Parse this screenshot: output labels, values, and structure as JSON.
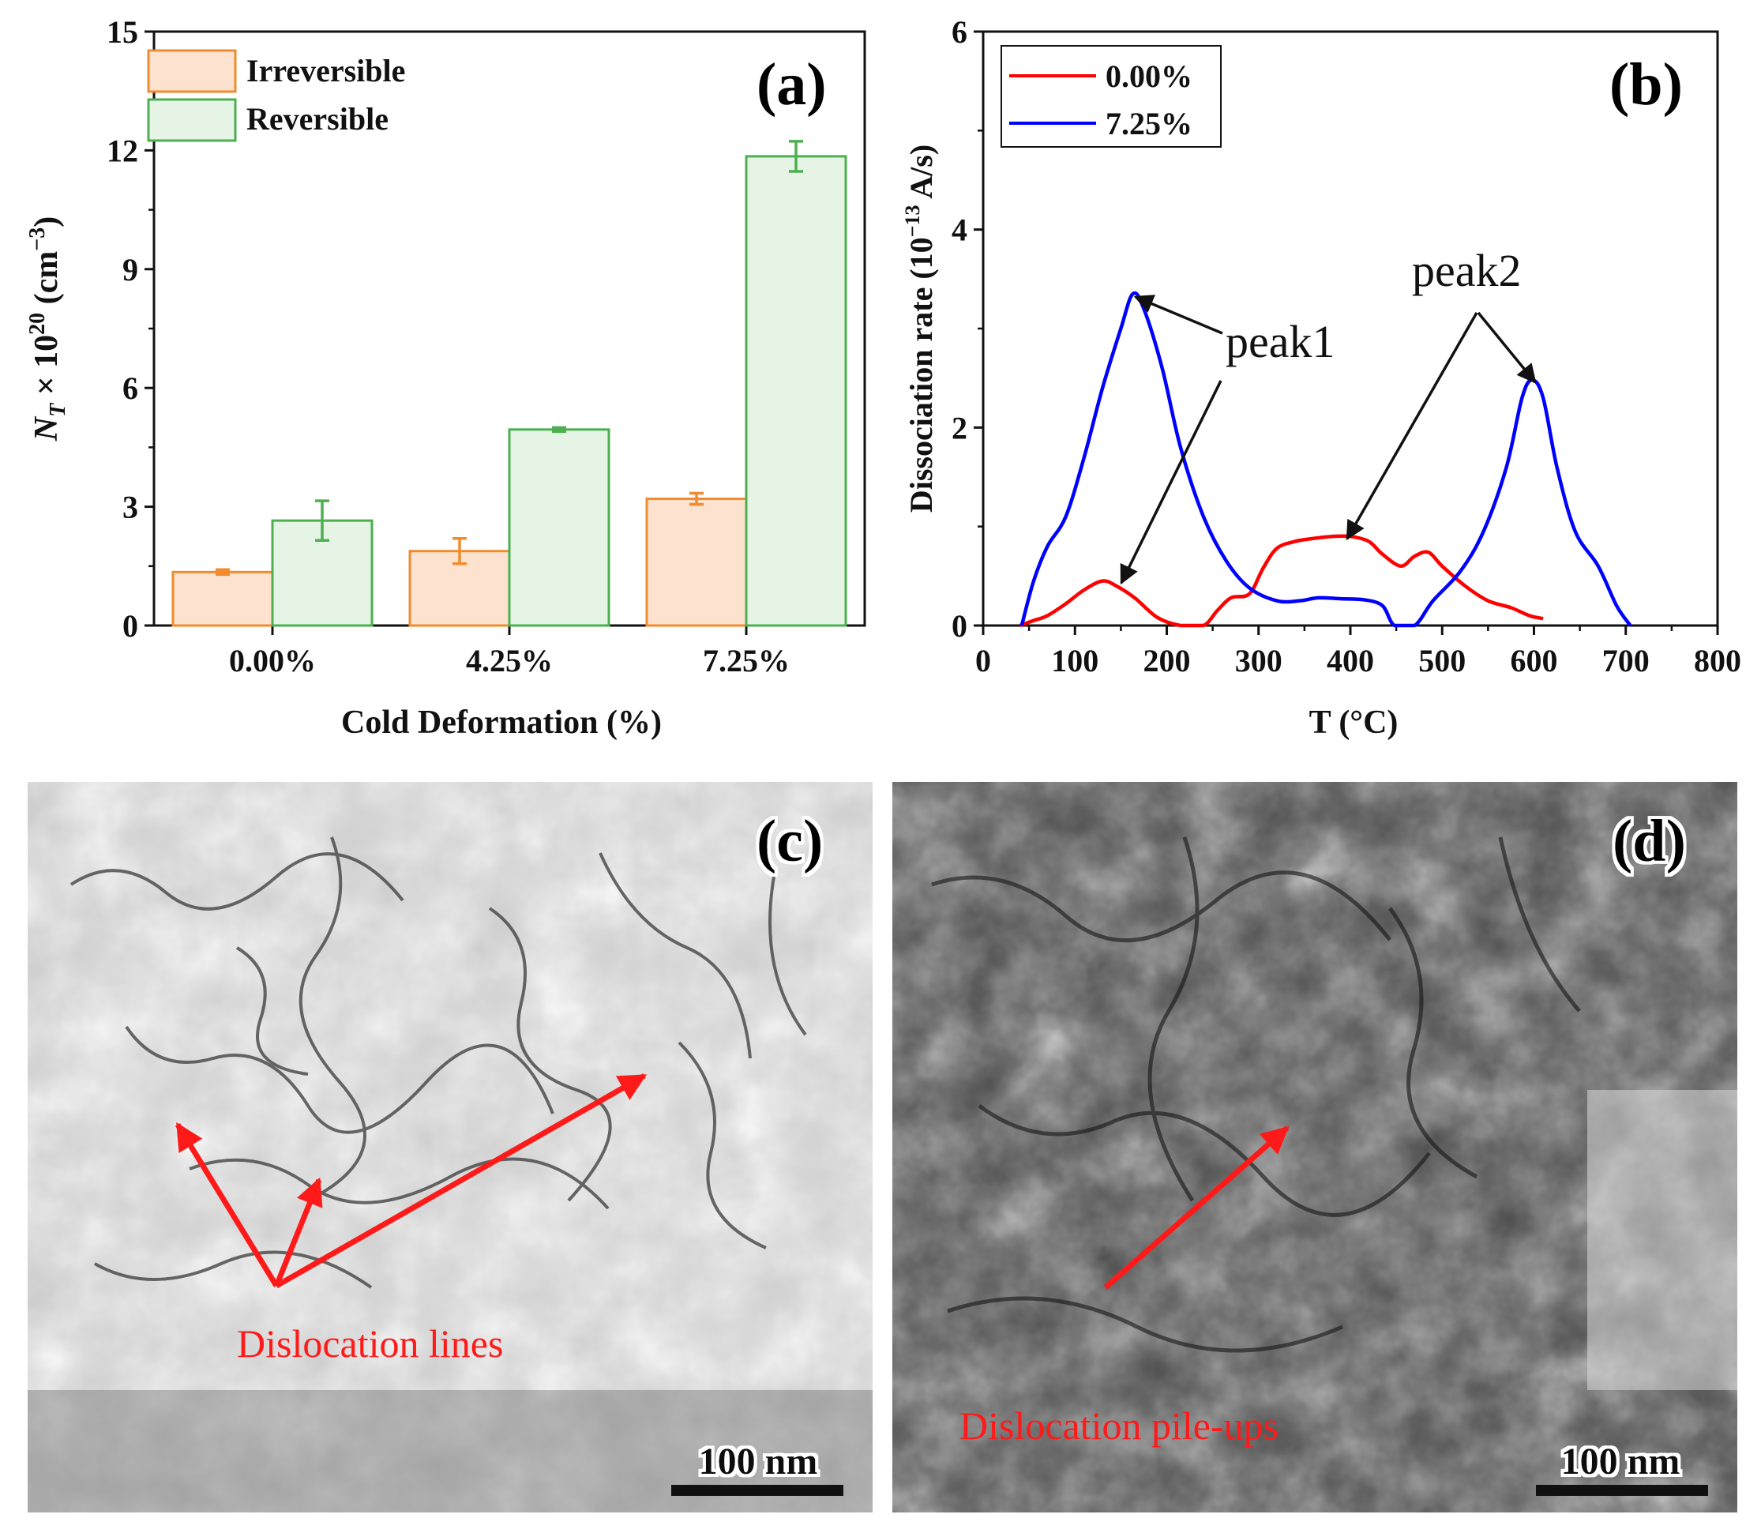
{
  "figure": {
    "panels": {
      "a": "(a)",
      "b": "(b)",
      "c": "(c)",
      "d": "(d)"
    }
  },
  "colors": {
    "irreversible_fill": "#fde3cf",
    "irreversible_edge": "#f28b2c",
    "reversible_fill": "#e6f4e6",
    "reversible_edge": "#4caf50",
    "series_0": "#ff0000",
    "series_725": "#0000ff",
    "annotation": "#ff1a1a",
    "axis": "#111111"
  },
  "chart_data": [
    {
      "type": "bar",
      "title": "(a)",
      "xlabel": "Cold Deformation (%)",
      "ylabel_main": "N",
      "ylabel_sub": "T",
      "ylabel_rest": " × 10",
      "ylabel_exp": "20",
      "ylabel_unit": " (cm",
      "ylabel_unit_exp": "−3",
      "ylabel_close": ")",
      "categories": [
        "0.00%",
        "4.25%",
        "7.25%"
      ],
      "ylim": [
        0,
        15
      ],
      "yticks": [
        "0",
        "3",
        "6",
        "9",
        "12",
        "15"
      ],
      "legend_position": "top-left",
      "series": [
        {
          "name": "Irreversible",
          "values": [
            1.35,
            1.88,
            3.2
          ],
          "errors": [
            0.06,
            0.32,
            0.14
          ]
        },
        {
          "name": "Reversible",
          "values": [
            2.65,
            4.95,
            11.85
          ],
          "errors": [
            0.5,
            0.05,
            0.38
          ]
        }
      ]
    },
    {
      "type": "line",
      "title": "(b)",
      "xlabel": "T (°C)",
      "ylabel_pre": "Dissociation rate (10",
      "ylabel_exp": "−13",
      "ylabel_post": " A/s)",
      "xlim": [
        0,
        800
      ],
      "ylim": [
        0,
        6
      ],
      "xticks": [
        "0",
        "100",
        "200",
        "300",
        "400",
        "500",
        "600",
        "700",
        "800"
      ],
      "yticks": [
        "0",
        "2",
        "4",
        "6"
      ],
      "legend_position": "top-left",
      "annotations": [
        "peak1",
        "peak2"
      ],
      "series": [
        {
          "name": "0.00%",
          "x": [
            40,
            55,
            70,
            90,
            110,
            130,
            145,
            165,
            190,
            215,
            240,
            255,
            270,
            290,
            305,
            320,
            340,
            360,
            380,
            400,
            420,
            435,
            455,
            470,
            485,
            500,
            525,
            550,
            575,
            595,
            610
          ],
          "y": [
            0.0,
            0.05,
            0.1,
            0.22,
            0.36,
            0.45,
            0.4,
            0.28,
            0.08,
            0.0,
            0.0,
            0.15,
            0.28,
            0.32,
            0.58,
            0.78,
            0.85,
            0.88,
            0.9,
            0.9,
            0.85,
            0.72,
            0.6,
            0.7,
            0.74,
            0.6,
            0.4,
            0.25,
            0.18,
            0.1,
            0.07
          ]
        },
        {
          "name": "7.25%",
          "x": [
            42,
            55,
            70,
            90,
            110,
            130,
            150,
            163,
            175,
            195,
            215,
            240,
            265,
            290,
            320,
            345,
            365,
            390,
            415,
            435,
            448,
            470,
            490,
            520,
            545,
            570,
            587,
            598,
            610,
            625,
            645,
            670,
            690,
            705
          ],
          "y": [
            0.0,
            0.45,
            0.8,
            1.1,
            1.7,
            2.4,
            3.0,
            3.35,
            3.2,
            2.6,
            1.8,
            1.1,
            0.65,
            0.38,
            0.25,
            0.25,
            0.28,
            0.27,
            0.26,
            0.2,
            0.0,
            0.0,
            0.25,
            0.55,
            0.95,
            1.6,
            2.3,
            2.48,
            2.3,
            1.6,
            0.95,
            0.6,
            0.2,
            0.0
          ]
        }
      ]
    }
  ],
  "micrographs": {
    "c": {
      "label": "Dislocation lines",
      "scale": "100 nm"
    },
    "d": {
      "label": "Dislocation pile-ups",
      "scale": "100 nm"
    }
  }
}
